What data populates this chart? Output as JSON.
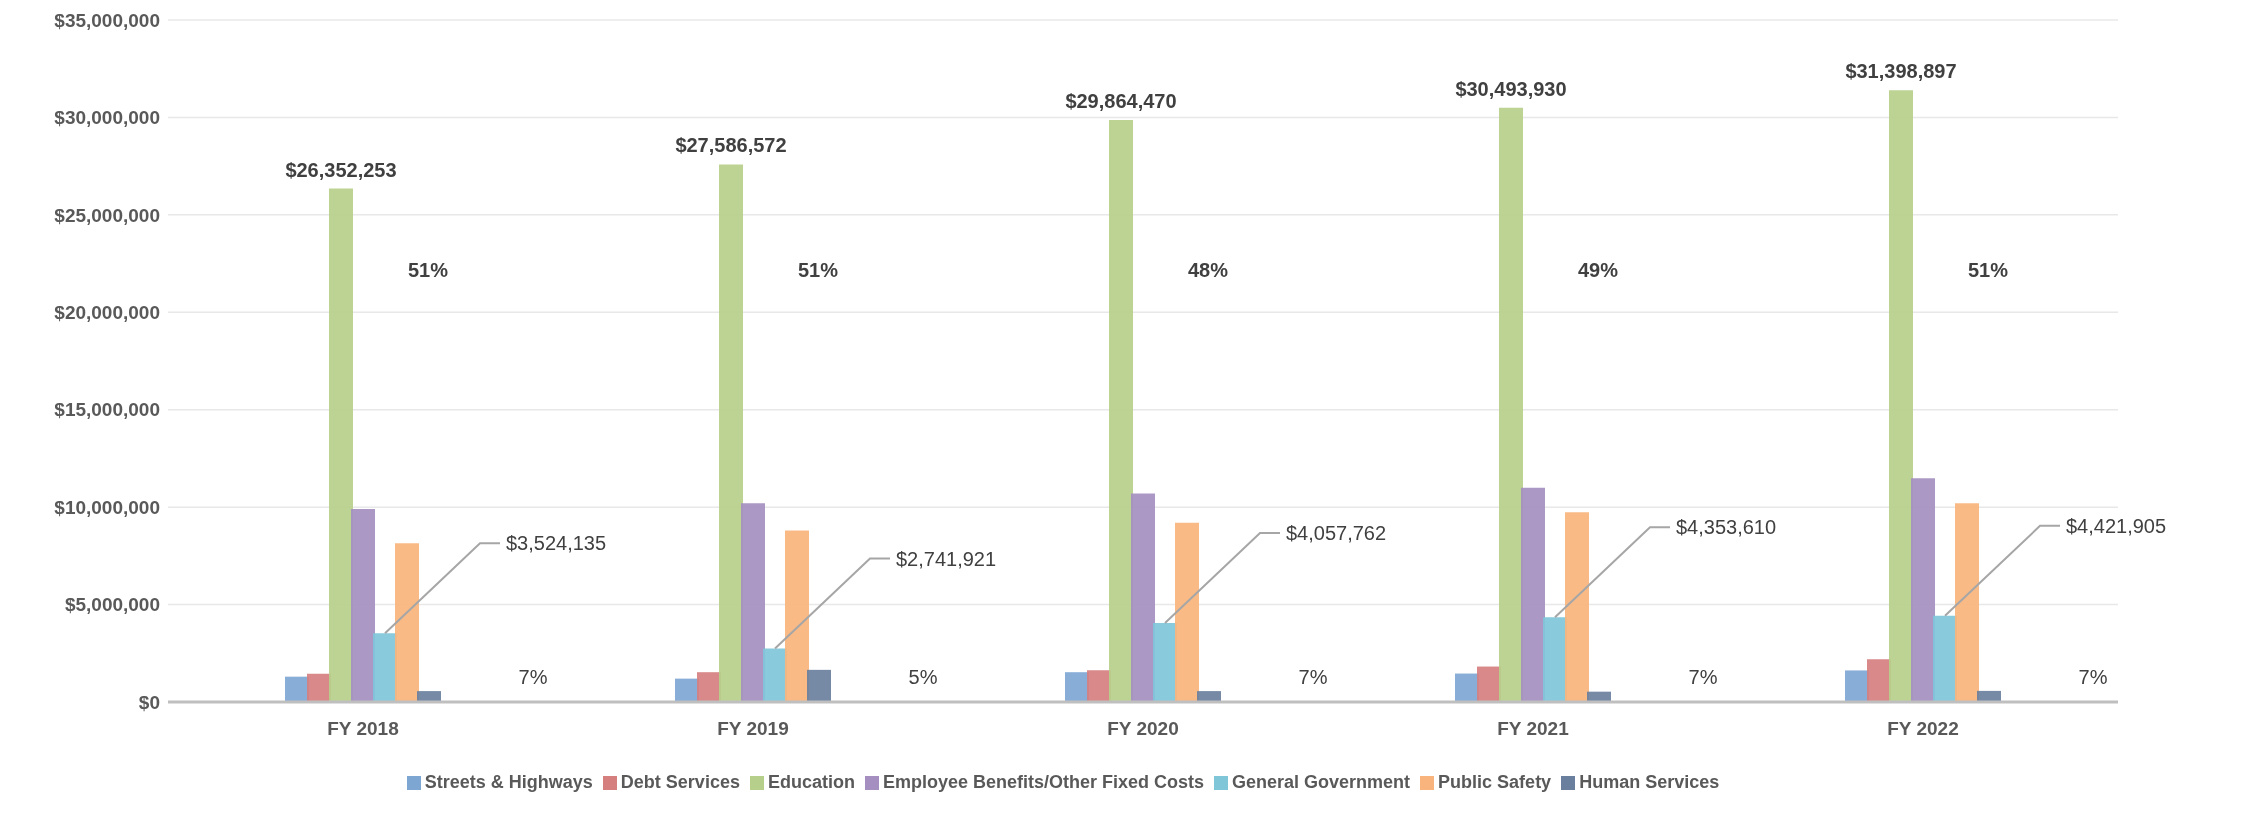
{
  "chart_data": {
    "type": "bar",
    "categories": [
      "FY 2018",
      "FY 2019",
      "FY 2020",
      "FY 2021",
      "FY 2022"
    ],
    "series": [
      {
        "name": "Streets & Highways",
        "color": "#7ea6d3",
        "values": [
          1300000,
          1200000,
          1530000,
          1460000,
          1620000
        ]
      },
      {
        "name": "Debt Services",
        "color": "#d67f7f",
        "values": [
          1450000,
          1530000,
          1630000,
          1820000,
          2190000
        ]
      },
      {
        "name": "Education",
        "color": "#b6cf8a",
        "values": [
          26352253,
          27586572,
          29864470,
          30493930,
          31398897
        ],
        "value_labels": [
          "$26,352,253",
          "$27,586,572",
          "$29,864,470",
          "$30,493,930",
          "$31,398,897"
        ]
      },
      {
        "name": "Employee Benefits/Other Fixed Costs",
        "color": "#a48fc0",
        "values": [
          9900000,
          10200000,
          10700000,
          11000000,
          11480000
        ]
      },
      {
        "name": "General Government",
        "color": "#7fc6d9",
        "values": [
          3524135,
          2741921,
          4057762,
          4353610,
          4421905
        ],
        "value_labels": [
          "$3,524,135",
          "$2,741,921",
          "$4,057,762",
          "$4,353,610",
          "$4,421,905"
        ]
      },
      {
        "name": "Public Safety",
        "color": "#f8b47c",
        "values": [
          8150000,
          8800000,
          9200000,
          9740000,
          10200000
        ]
      },
      {
        "name": "Human Services",
        "color": "#6a7f9d",
        "values": [
          560000,
          1650000,
          560000,
          530000,
          570000
        ]
      }
    ],
    "ylim": [
      0,
      35000000
    ],
    "yticks": [
      {
        "value": 0,
        "label": "$0"
      },
      {
        "value": 5000000,
        "label": "$5,000,000"
      },
      {
        "value": 10000000,
        "label": "$10,000,000"
      },
      {
        "value": 15000000,
        "label": "$15,000,000"
      },
      {
        "value": 20000000,
        "label": "$20,000,000"
      },
      {
        "value": 25000000,
        "label": "$25,000,000"
      },
      {
        "value": 30000000,
        "label": "$30,000,000"
      },
      {
        "value": 35000000,
        "label": "$35,000,000"
      }
    ],
    "annotations": [
      "51%",
      "7%",
      "51%",
      "5%",
      "48%",
      "7%",
      "49%",
      "7%",
      "51%",
      "7%"
    ],
    "grid": "y",
    "legend": "bottom"
  }
}
